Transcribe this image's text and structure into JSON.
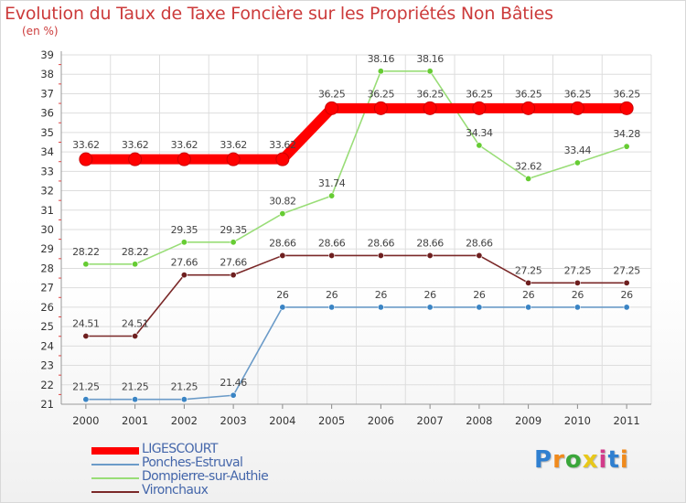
{
  "header": {
    "title": "Evolution du Taux de Taxe Foncière sur les Propriétés Non Bâties",
    "unit": "(en %)"
  },
  "chart_data": {
    "type": "line",
    "title": "Evolution du Taux de Taxe Foncière sur les Propriétés Non Bâties",
    "ylabel": "(en %)",
    "xlabel": "",
    "x": [
      "2000",
      "2001",
      "2002",
      "2003",
      "2004",
      "2005",
      "2006",
      "2007",
      "2008",
      "2009",
      "2010",
      "2011"
    ],
    "ylim": [
      21,
      39
    ],
    "yticks": [
      21,
      22,
      23,
      24,
      25,
      26,
      27,
      28,
      29,
      30,
      31,
      32,
      33,
      34,
      35,
      36,
      37,
      38,
      39
    ],
    "grid": true,
    "legend_position": "bottom-left",
    "series": [
      {
        "name": "LIGESCOURT",
        "color": "#ff0000",
        "values": [
          33.62,
          33.62,
          33.62,
          33.62,
          33.62,
          36.25,
          36.25,
          36.25,
          36.25,
          36.25,
          36.25,
          36.25
        ],
        "labels": [
          "33.62",
          "33.62",
          "33.62",
          "33.62",
          "33.62",
          "36.25",
          "36.25",
          "36.25",
          "36.25",
          "36.25",
          "36.25",
          "36.25"
        ]
      },
      {
        "name": "Ponches-Estruval",
        "color": "#6b9bc8",
        "point_color": "#3a84c4",
        "values": [
          21.25,
          21.25,
          21.25,
          21.46,
          26,
          26,
          26,
          26,
          26,
          26,
          26,
          26
        ],
        "labels": [
          "21.25",
          "21.25",
          "21.25",
          "21.46",
          "26",
          "26",
          "26",
          "26",
          "26",
          "26",
          "26",
          "26"
        ]
      },
      {
        "name": "Dompierre-sur-Authie",
        "color": "#99dd77",
        "point_color": "#66cc33",
        "values": [
          28.22,
          28.22,
          29.35,
          29.35,
          30.82,
          31.74,
          38.16,
          38.16,
          34.34,
          32.62,
          33.44,
          34.28
        ],
        "labels": [
          "28.22",
          "28.22",
          "29.35",
          "29.35",
          "30.82",
          "31.74",
          "38.16",
          "38.16",
          "34.34",
          "32.62",
          "33.44",
          "34.28"
        ]
      },
      {
        "name": "Vironchaux",
        "color": "#7a2828",
        "point_color": "#6e1f1f",
        "values": [
          24.51,
          24.51,
          27.66,
          27.66,
          28.66,
          28.66,
          28.66,
          28.66,
          28.66,
          27.25,
          27.25,
          27.25
        ],
        "labels": [
          "24.51",
          "24.51",
          "27.66",
          "27.66",
          "28.66",
          "28.66",
          "28.66",
          "28.66",
          "28.66",
          "27.25",
          "27.25",
          "27.25"
        ]
      }
    ]
  },
  "legend": {
    "items": [
      {
        "label": "LIGESCOURT",
        "color": "#ff0000"
      },
      {
        "label": "Ponches-Estruval",
        "color": "#6b9bc8"
      },
      {
        "label": "Dompierre-sur-Authie",
        "color": "#99dd77"
      },
      {
        "label": "Vironchaux",
        "color": "#7a2828"
      }
    ]
  },
  "logo": {
    "text": "Prox iti",
    "letters": [
      "P",
      "r",
      "o",
      "x",
      "i",
      "t",
      "i"
    ],
    "colors": [
      "#2f7fd0",
      "#f08a1c",
      "#3aa63a",
      "#e8c81a",
      "#d23b8a",
      "#2f7fd0",
      "#f08a1c"
    ]
  }
}
